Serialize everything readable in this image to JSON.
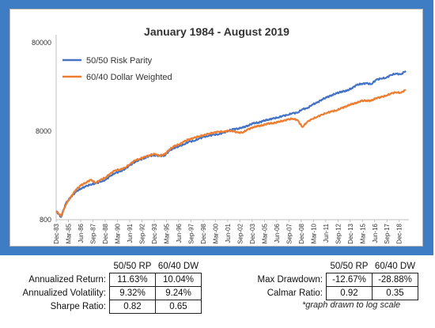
{
  "chart_data": {
    "type": "line",
    "title": "January 1984 - August 2019",
    "y_scale": "log",
    "ylim": [
      800,
      80000
    ],
    "y_ticks": [
      {
        "value": 800,
        "label": "800"
      },
      {
        "value": 8000,
        "label": "8000"
      },
      {
        "value": 80000,
        "label": "80000"
      }
    ],
    "x_ticks": [
      "Dec-83",
      "Mar-85",
      "Jun-86",
      "Sep-87",
      "Dec-88",
      "Mar-90",
      "Jun-91",
      "Sep-92",
      "Dec-93",
      "Mar-95",
      "Jun-96",
      "Sep-97",
      "Dec-98",
      "Mar-00",
      "Jun-01",
      "Sep-02",
      "Dec-03",
      "Mar-05",
      "Jun-06",
      "Sep-07",
      "Dec-08",
      "Mar-10",
      "Jun-11",
      "Sep-12",
      "Dec-13",
      "Mar-15",
      "Jun-16",
      "Sep-17",
      "Dec-18"
    ],
    "x": [
      "Dec-83",
      "Jun-84",
      "Dec-84",
      "Jun-85",
      "Dec-85",
      "Jun-86",
      "Dec-86",
      "Jun-87",
      "Dec-87",
      "Jun-88",
      "Dec-88",
      "Jun-89",
      "Dec-89",
      "Jun-90",
      "Dec-90",
      "Jun-91",
      "Dec-91",
      "Jun-92",
      "Dec-92",
      "Jun-93",
      "Dec-93",
      "Jun-94",
      "Dec-94",
      "Jun-95",
      "Dec-95",
      "Jun-96",
      "Dec-96",
      "Jun-97",
      "Dec-97",
      "Jun-98",
      "Dec-98",
      "Jun-99",
      "Dec-99",
      "Jun-00",
      "Dec-00",
      "Jun-01",
      "Dec-01",
      "Jun-02",
      "Dec-02",
      "Jun-03",
      "Dec-03",
      "Jun-04",
      "Dec-04",
      "Jun-05",
      "Dec-05",
      "Jun-06",
      "Dec-06",
      "Jun-07",
      "Dec-07",
      "Jun-08",
      "Dec-08",
      "Jun-09",
      "Dec-09",
      "Jun-10",
      "Dec-10",
      "Jun-11",
      "Dec-11",
      "Jun-12",
      "Dec-12",
      "Jun-13",
      "Dec-13",
      "Jun-14",
      "Dec-14",
      "Jun-15",
      "Dec-15",
      "Jun-16",
      "Dec-16",
      "Jun-17",
      "Dec-17",
      "Jun-18",
      "Dec-18",
      "Aug-19"
    ],
    "series": [
      {
        "name": "50/50 Risk Parity",
        "color": "#4472c4",
        "values": [
          1000,
          860,
          1230,
          1450,
          1650,
          1800,
          1900,
          2000,
          2050,
          2150,
          2250,
          2500,
          2700,
          2800,
          3000,
          3300,
          3600,
          3800,
          4000,
          4200,
          4300,
          4200,
          4250,
          4800,
          5200,
          5400,
          5700,
          6100,
          6200,
          6600,
          6900,
          7100,
          7300,
          7400,
          7700,
          8100,
          8400,
          8600,
          8800,
          9300,
          9800,
          10000,
          10400,
          10800,
          11100,
          11400,
          11900,
          12200,
          12800,
          12900,
          14200,
          14500,
          16000,
          16800,
          18300,
          19300,
          20500,
          21400,
          22500,
          22800,
          24500,
          26500,
          27500,
          27800,
          27200,
          30500,
          31500,
          32000,
          34500,
          35800,
          35000,
          38500
        ]
      },
      {
        "name": "60/40 Dollar Weighted",
        "color": "#ed7d31",
        "values": [
          1000,
          880,
          1200,
          1450,
          1750,
          1950,
          2100,
          2250,
          2100,
          2250,
          2400,
          2650,
          2900,
          2950,
          3100,
          3400,
          3750,
          3900,
          4100,
          4300,
          4400,
          4250,
          4350,
          5000,
          5400,
          5700,
          6100,
          6500,
          6700,
          7000,
          7200,
          7500,
          7700,
          7900,
          7900,
          8100,
          8000,
          7700,
          7800,
          8400,
          8900,
          9100,
          9400,
          9700,
          9900,
          10100,
          10500,
          10800,
          11100,
          10700,
          8900,
          10200,
          11000,
          11600,
          12300,
          12900,
          13400,
          13800,
          14600,
          15400,
          16100,
          16800,
          17500,
          17800,
          17600,
          19000,
          19400,
          20200,
          21300,
          22000,
          21700,
          23500
        ]
      }
    ],
    "legend_position": "top-left",
    "grid": false
  },
  "stats_left": {
    "col1_header": "50/50 RP",
    "col2_header": "60/40 DW",
    "rows": [
      {
        "label": "Annualized Return:",
        "rp": "11.63%",
        "dw": "10.04%"
      },
      {
        "label": "Annualized Volatility:",
        "rp": "9.32%",
        "dw": "9.24%"
      },
      {
        "label": "Sharpe Ratio:",
        "rp": "0.82",
        "dw": "0.65"
      }
    ]
  },
  "stats_right": {
    "col1_header": "50/50 RP",
    "col2_header": "60/40 DW",
    "rows": [
      {
        "label": "Max Drawdown:",
        "rp": "-12.67%",
        "dw": "-28.88%"
      },
      {
        "label": "Calmar Ratio:",
        "rp": "0.92",
        "dw": "0.35"
      }
    ]
  },
  "footnote": "*graph drawn to log scale"
}
